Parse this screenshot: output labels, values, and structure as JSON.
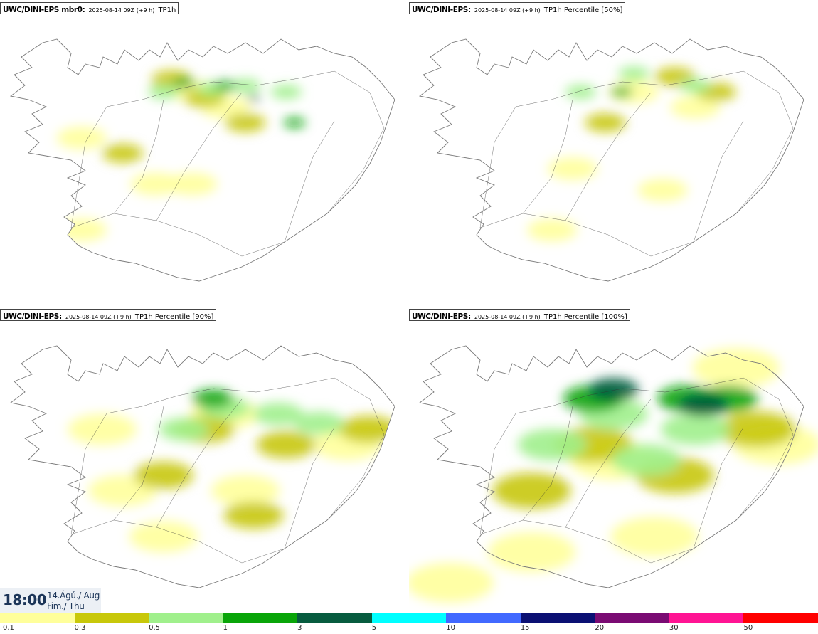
{
  "panels": [
    {
      "source": "UWC/DINI-EPS mbr0",
      "run": "2025-08-14 09Z (+9 h)",
      "variable": "TP1h",
      "intensity": "low",
      "blobs": [
        {
          "x": 47,
          "y": 60,
          "c": 0
        },
        {
          "x": 20,
          "y": 45,
          "c": 0
        },
        {
          "x": 48,
          "y": 30,
          "c": 0
        },
        {
          "x": 20,
          "y": 75,
          "c": 0
        },
        {
          "x": 55,
          "y": 35,
          "c": 0
        },
        {
          "x": 38,
          "y": 60,
          "c": 0
        },
        {
          "x": 30,
          "y": 50,
          "c": 1
        },
        {
          "x": 60,
          "y": 40,
          "c": 1
        },
        {
          "x": 50,
          "y": 32,
          "c": 1
        },
        {
          "x": 42,
          "y": 26,
          "c": 1
        },
        {
          "x": 60,
          "y": 28,
          "c": 2
        },
        {
          "x": 70,
          "y": 30,
          "c": 2
        },
        {
          "x": 52,
          "y": 29,
          "c": 2
        },
        {
          "x": 40,
          "y": 30,
          "c": 2
        },
        {
          "x": 45,
          "y": 27,
          "c": 3
        },
        {
          "x": 55,
          "y": 28,
          "c": 3
        },
        {
          "x": 72,
          "y": 40,
          "c": 3
        },
        {
          "x": 62,
          "y": 32,
          "c": 4
        }
      ]
    },
    {
      "source": "UWC/DINI-EPS",
      "run": "2025-08-14 09Z (+9 h)",
      "variable": "TP1h Percentile [50%]",
      "intensity": "low",
      "blobs": [
        {
          "x": 55,
          "y": 30,
          "c": 0
        },
        {
          "x": 40,
          "y": 55,
          "c": 0
        },
        {
          "x": 70,
          "y": 35,
          "c": 0
        },
        {
          "x": 62,
          "y": 62,
          "c": 0
        },
        {
          "x": 35,
          "y": 75,
          "c": 0
        },
        {
          "x": 48,
          "y": 40,
          "c": 1
        },
        {
          "x": 65,
          "y": 25,
          "c": 1
        },
        {
          "x": 75,
          "y": 30,
          "c": 1
        },
        {
          "x": 55,
          "y": 24,
          "c": 2
        },
        {
          "x": 52,
          "y": 30,
          "c": 3
        },
        {
          "x": 70,
          "y": 28,
          "c": 2
        },
        {
          "x": 42,
          "y": 30,
          "c": 2
        }
      ]
    },
    {
      "source": "UWC/DINI-EPS",
      "run": "2025-08-14 09Z (+9 h)",
      "variable": "TP1h Percentile [90%]",
      "intensity": "medium",
      "blobs": [
        {
          "x": 55,
          "y": 35,
          "c": 0
        },
        {
          "x": 30,
          "y": 60,
          "c": 0
        },
        {
          "x": 60,
          "y": 60,
          "c": 0
        },
        {
          "x": 40,
          "y": 75,
          "c": 0
        },
        {
          "x": 85,
          "y": 45,
          "c": 0
        },
        {
          "x": 25,
          "y": 40,
          "c": 0
        },
        {
          "x": 50,
          "y": 40,
          "c": 1
        },
        {
          "x": 70,
          "y": 45,
          "c": 1
        },
        {
          "x": 40,
          "y": 55,
          "c": 1
        },
        {
          "x": 62,
          "y": 68,
          "c": 1
        },
        {
          "x": 90,
          "y": 40,
          "c": 1
        },
        {
          "x": 55,
          "y": 33,
          "c": 2
        },
        {
          "x": 68,
          "y": 35,
          "c": 2
        },
        {
          "x": 45,
          "y": 40,
          "c": 2
        },
        {
          "x": 78,
          "y": 38,
          "c": 2
        },
        {
          "x": 52,
          "y": 30,
          "c": 3
        }
      ]
    },
    {
      "source": "UWC/DINI-EPS",
      "run": "2025-08-14 09Z (+9 h)",
      "variable": "TP1h Percentile [100%]",
      "intensity": "high",
      "blobs": [
        {
          "x": 50,
          "y": 50,
          "c": 0
        },
        {
          "x": 30,
          "y": 80,
          "c": 0
        },
        {
          "x": 80,
          "y": 20,
          "c": 0
        },
        {
          "x": 60,
          "y": 75,
          "c": 0
        },
        {
          "x": 10,
          "y": 90,
          "c": 0
        },
        {
          "x": 90,
          "y": 45,
          "c": 0
        },
        {
          "x": 45,
          "y": 45,
          "c": 1
        },
        {
          "x": 65,
          "y": 55,
          "c": 1
        },
        {
          "x": 30,
          "y": 60,
          "c": 1
        },
        {
          "x": 85,
          "y": 40,
          "c": 1
        },
        {
          "x": 50,
          "y": 35,
          "c": 2
        },
        {
          "x": 70,
          "y": 40,
          "c": 2
        },
        {
          "x": 35,
          "y": 45,
          "c": 2
        },
        {
          "x": 58,
          "y": 50,
          "c": 2
        },
        {
          "x": 45,
          "y": 30,
          "c": 3
        },
        {
          "x": 68,
          "y": 30,
          "c": 3
        },
        {
          "x": 78,
          "y": 30,
          "c": 3
        },
        {
          "x": 50,
          "y": 27,
          "c": 4
        },
        {
          "x": 72,
          "y": 32,
          "c": 4
        }
      ]
    }
  ],
  "valid_time": {
    "hour": "18:00",
    "date_line": "14.Ágú./ Aug",
    "weekday_line": "Fim./ Thu"
  },
  "legend": {
    "ticks": [
      "0.1",
      "0.3",
      "0.5",
      "1",
      "3",
      "5",
      "10",
      "15",
      "20",
      "30",
      "50"
    ],
    "colors": [
      "#ffff9b",
      "#c8c80a",
      "#a0f08c",
      "#09a509",
      "#075c3f",
      "#00ffff",
      "#4169ff",
      "#0b1073",
      "#7a0b73",
      "#ff1493",
      "#ff0000"
    ]
  },
  "map_colors": {
    "coastline": "#7a7a7a",
    "roads": "#333333"
  }
}
